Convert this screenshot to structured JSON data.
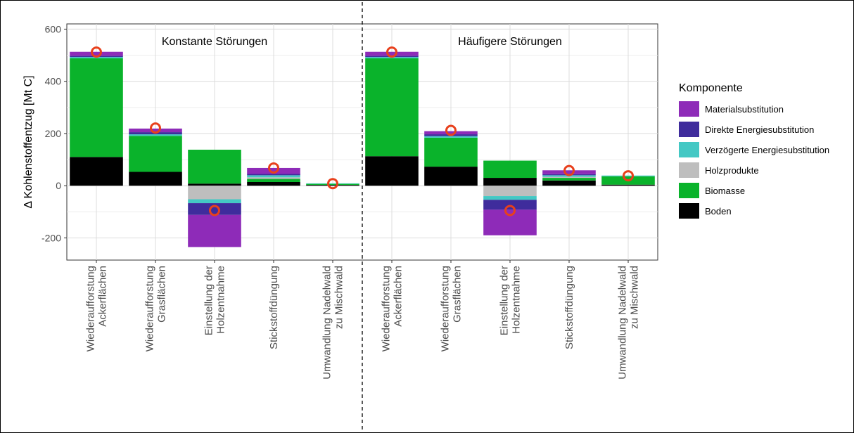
{
  "chart_data": {
    "type": "bar",
    "stacked": true,
    "ylabel": "Δ Kohlenstoffentzug [Mt C]",
    "ylim": [
      -285,
      620
    ],
    "yticks": [
      -200,
      0,
      200,
      400,
      600
    ],
    "grid": true,
    "legend_position": "right",
    "legend_title": "Komponente",
    "colors": {
      "Materialsubstitution": "#8e2bb8",
      "Direkte Energiesubstitution": "#3f2c9c",
      "Verzögerte Energiesubstitution": "#44c8c4",
      "Holzprodukte": "#bebebe",
      "Biomasse": "#0ab32b",
      "Boden": "#000000",
      "total_marker": "#e8401c"
    },
    "components": [
      "Materialsubstitution",
      "Direkte Energiesubstitution",
      "Verzögerte Energiesubstitution",
      "Holzprodukte",
      "Biomasse",
      "Boden"
    ],
    "categories": [
      [
        "Wiederaufforstung",
        "Ackerflächen"
      ],
      [
        "Wiederaufforstung",
        "Grasflächen"
      ],
      [
        "Einstellung der",
        "Holzentnahme"
      ],
      [
        "Stickstoffdüngung"
      ],
      [
        "Umwandlung Nadelwald",
        "zu Mischwald"
      ]
    ],
    "panels": [
      {
        "title": "Konstante Störungen",
        "bars": [
          {
            "Boden": 110,
            "Biomasse": 378,
            "Holzprodukte": 0,
            "Verzögerte Energiesubstitution": 5,
            "Direkte Energiesubstitution": 5,
            "Materialsubstitution": 15,
            "total": 512
          },
          {
            "Boden": 53,
            "Biomasse": 138,
            "Holzprodukte": 0,
            "Verzögerte Energiesubstitution": 6,
            "Direkte Energiesubstitution": 8,
            "Materialsubstitution": 14,
            "total": 221
          },
          {
            "Boden": 8,
            "Biomasse": 130,
            "Holzprodukte": -52,
            "Verzögerte Energiesubstitution": -15,
            "Direkte Energiesubstitution": -45,
            "Materialsubstitution": -123,
            "total": -95
          },
          {
            "Boden": 14,
            "Biomasse": 12,
            "Holzprodukte": 6,
            "Verzögerte Energiesubstitution": 8,
            "Direkte Energiesubstitution": 5,
            "Materialsubstitution": 23,
            "total": 68
          },
          {
            "Boden": 3,
            "Biomasse": 4,
            "Holzprodukte": 0,
            "Verzögerte Energiesubstitution": 2,
            "Direkte Energiesubstitution": 0,
            "Materialsubstitution": 0,
            "total": 8
          }
        ]
      },
      {
        "title": "Häufigere Störungen",
        "bars": [
          {
            "Boden": 113,
            "Biomasse": 375,
            "Holzprodukte": 0,
            "Verzögerte Energiesubstitution": 5,
            "Direkte Energiesubstitution": 5,
            "Materialsubstitution": 15,
            "total": 512
          },
          {
            "Boden": 73,
            "Biomasse": 111,
            "Holzprodukte": 0,
            "Verzögerte Energiesubstitution": 6,
            "Direkte Energiesubstitution": 7,
            "Materialsubstitution": 12,
            "total": 212
          },
          {
            "Boden": 30,
            "Biomasse": 66,
            "Holzprodukte": -40,
            "Verzögerte Energiesubstitution": -14,
            "Direkte Energiesubstitution": -38,
            "Materialsubstitution": -98,
            "total": -95
          },
          {
            "Boden": 20,
            "Biomasse": 10,
            "Holzprodukte": 4,
            "Verzögerte Energiesubstitution": 6,
            "Direkte Energiesubstitution": 4,
            "Materialsubstitution": 15,
            "total": 58
          },
          {
            "Boden": 4,
            "Biomasse": 32,
            "Holzprodukte": 0,
            "Verzögerte Energiesubstitution": 3,
            "Direkte Energiesubstitution": 0,
            "Materialsubstitution": 0,
            "total": 38
          }
        ]
      }
    ]
  }
}
